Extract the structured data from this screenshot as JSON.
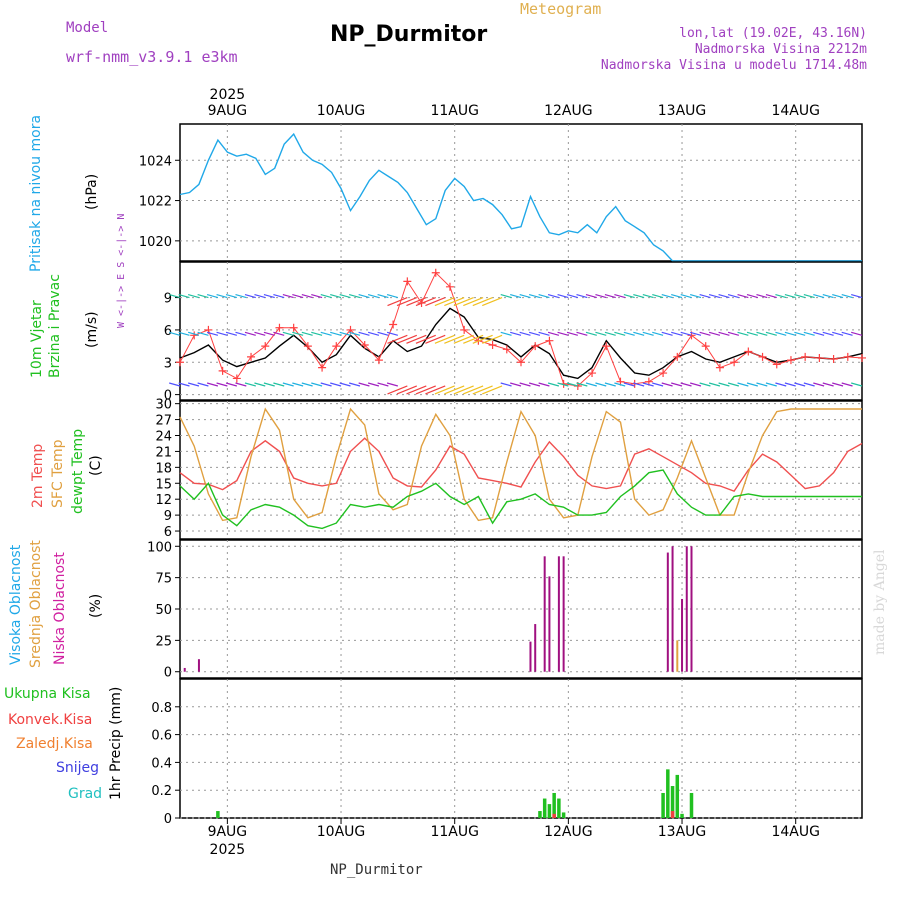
{
  "header": {
    "model_label": "Model",
    "model_name": "wrf-nmm_v3.9.1 e3km",
    "meteogram_label": "Meteogram",
    "station": "NP_Durmitor",
    "lonlat": "lon,lat (19.02E, 43.16N)",
    "altitude": "Nadmorska Visina 2212m",
    "model_altitude": "Nadmorska Visina u modelu 1714.48m",
    "footer_station": "NP_Durmitor",
    "watermark": "made by Angel",
    "colors": {
      "purple": "#a040c0",
      "gold": "#e0b050"
    }
  },
  "time_axis": {
    "year": "2025",
    "days": [
      "9AUG",
      "10AUG",
      "11AUG",
      "12AUG",
      "13AUG",
      "14AUG"
    ],
    "start_hour": 0,
    "end_hour": 144
  },
  "chart_data": [
    {
      "type": "line",
      "id": "pressure",
      "ylabel": "Pritisak na nivou mora",
      "unit": "(hPa)",
      "ylim": [
        1019,
        1025.8
      ],
      "yticks": [
        1020,
        1022,
        1024
      ],
      "grid": true,
      "series": [
        {
          "name": "Pritisak na nivou mora",
          "color": "#20a8e8",
          "x": [
            0,
            2,
            4,
            6,
            8,
            10,
            12,
            14,
            16,
            18,
            20,
            22,
            24,
            26,
            28,
            30,
            32,
            34,
            36,
            38,
            40,
            42,
            44,
            46,
            48,
            50,
            52,
            54,
            56,
            58,
            60,
            62,
            64,
            66,
            68,
            70,
            72,
            74,
            76,
            78,
            80,
            82,
            84,
            86,
            88,
            90,
            92,
            94,
            96,
            98,
            100,
            102,
            104,
            106,
            108,
            110,
            112,
            114,
            116,
            118,
            120,
            122,
            124,
            126,
            128,
            130,
            132,
            134,
            136,
            138,
            140,
            142,
            144
          ],
          "y": [
            1022.3,
            1022.4,
            1022.8,
            1024.0,
            1025.0,
            1024.4,
            1024.2,
            1024.3,
            1024.1,
            1023.3,
            1023.6,
            1024.8,
            1025.3,
            1024.4,
            1024.0,
            1023.8,
            1023.4,
            1022.6,
            1021.5,
            1022.2,
            1023.0,
            1023.5,
            1023.2,
            1022.9,
            1022.4,
            1021.6,
            1020.8,
            1021.1,
            1022.5,
            1023.1,
            1022.7,
            1022.0,
            1022.1,
            1021.8,
            1021.3,
            1020.6,
            1020.7,
            1022.2,
            1021.2,
            1020.4,
            1020.3,
            1020.5,
            1020.4,
            1020.8,
            1020.4,
            1021.2,
            1021.7,
            1021.0,
            1020.7,
            1020.4,
            1019.8,
            1019.5,
            1019.0,
            1019.0,
            1019.0,
            1019.0,
            1019.0,
            1019.0,
            1019.0,
            1019.0,
            1019.0,
            1019.0,
            1019.0,
            1019.0,
            1019.0,
            1019.0,
            1019.0,
            1019.0,
            1019.0,
            1019.0,
            1019.0,
            1019.0,
            1019.0
          ]
        }
      ]
    },
    {
      "type": "line",
      "id": "wind",
      "ylabel": "10m Vjetar Brzina i Pravac",
      "unit": "(m/s)",
      "compass": "W <-|-> E  S <-|-> N",
      "ylim": [
        -0.5,
        12.3
      ],
      "yticks": [
        0,
        3,
        6,
        9
      ],
      "grid": true,
      "series": [
        {
          "name": "speed",
          "color": "#000000",
          "x": [
            0,
            3,
            6,
            9,
            12,
            15,
            18,
            21,
            24,
            27,
            30,
            33,
            36,
            39,
            42,
            45,
            48,
            51,
            54,
            57,
            60,
            63,
            66,
            69,
            72,
            75,
            78,
            81,
            84,
            87,
            90,
            93,
            96,
            99,
            102,
            105,
            108,
            111,
            114,
            117,
            120,
            123,
            126,
            129,
            132,
            135,
            138,
            141,
            144
          ],
          "y": [
            3.4,
            3.9,
            4.6,
            3.2,
            2.6,
            3.0,
            3.4,
            4.5,
            5.5,
            4.4,
            3.0,
            3.7,
            5.5,
            4.3,
            3.5,
            5.0,
            4.0,
            4.5,
            6.5,
            8.0,
            7.2,
            5.3,
            5.1,
            4.6,
            3.5,
            4.6,
            3.8,
            1.8,
            1.5,
            2.5,
            5.0,
            3.4,
            2.0,
            1.8,
            2.5,
            3.5,
            4.0,
            3.3,
            3.0,
            3.5,
            4.0,
            3.5,
            3.0,
            3.2,
            3.5,
            3.4,
            3.3,
            3.5,
            3.8
          ]
        },
        {
          "name": "gust",
          "color": "#ff4040",
          "x": [
            0,
            3,
            6,
            9,
            12,
            15,
            18,
            21,
            24,
            27,
            30,
            33,
            36,
            39,
            42,
            45,
            48,
            51,
            54,
            57,
            60,
            63,
            66,
            69,
            72,
            75,
            78,
            81,
            84,
            87,
            90,
            93,
            96,
            99,
            102,
            105,
            108,
            111,
            114,
            117,
            120,
            123,
            126,
            129,
            132,
            135,
            138,
            141,
            144
          ],
          "y": [
            3.0,
            5.5,
            6.0,
            2.2,
            1.5,
            3.5,
            4.5,
            6.2,
            6.2,
            4.5,
            2.5,
            4.5,
            6.0,
            4.6,
            3.2,
            6.5,
            10.5,
            8.5,
            11.3,
            10.0,
            6.0,
            5.0,
            4.6,
            4.2,
            3.0,
            4.5,
            5.0,
            1.0,
            0.8,
            2.0,
            4.5,
            1.2,
            1.0,
            1.2,
            2.0,
            3.5,
            5.5,
            4.5,
            2.5,
            3.0,
            4.0,
            3.5,
            2.8,
            3.2,
            3.5,
            3.4,
            3.3,
            3.5,
            3.4
          ]
        }
      ]
    },
    {
      "type": "line",
      "id": "temperature",
      "ylabel_lines": [
        "2m Temp",
        "SFC Temp",
        "dewpt Temp"
      ],
      "unit": "(C)",
      "ylim": [
        4.5,
        30.5
      ],
      "yticks": [
        6,
        9,
        12,
        15,
        18,
        21,
        24,
        27,
        30
      ],
      "grid": true,
      "series": [
        {
          "name": "2m Temp",
          "color": "#f05050",
          "x": [
            0,
            3,
            6,
            9,
            12,
            15,
            18,
            21,
            24,
            27,
            30,
            33,
            36,
            39,
            42,
            45,
            48,
            51,
            54,
            57,
            60,
            63,
            66,
            69,
            72,
            75,
            78,
            81,
            84,
            87,
            90,
            93,
            96,
            99,
            102,
            105,
            108,
            111,
            114,
            117,
            120,
            123,
            126,
            129,
            132,
            135,
            138,
            141,
            144
          ],
          "y": [
            17.0,
            15.0,
            14.8,
            13.8,
            15.5,
            21.0,
            23.0,
            21.0,
            16.0,
            15.0,
            14.5,
            15.0,
            21.0,
            23.5,
            21.0,
            16.0,
            14.5,
            14.3,
            17.5,
            22.0,
            20.5,
            16.0,
            15.5,
            15.0,
            14.3,
            19.0,
            22.8,
            20.0,
            16.5,
            14.5,
            14.0,
            14.5,
            20.5,
            21.5,
            20.0,
            18.5,
            17.0,
            15.0,
            14.5,
            13.5,
            17.5,
            20.5,
            19.0,
            16.5,
            14.0,
            14.5,
            17.0,
            21.0,
            22.5
          ]
        },
        {
          "name": "SFC Temp",
          "color": "#e0a040",
          "x": [
            0,
            3,
            6,
            9,
            12,
            15,
            18,
            21,
            24,
            27,
            30,
            33,
            36,
            39,
            42,
            45,
            48,
            51,
            54,
            57,
            60,
            63,
            66,
            69,
            72,
            75,
            78,
            81,
            84,
            87,
            90,
            93,
            96,
            99,
            102,
            105,
            108,
            111,
            114,
            117,
            120,
            123,
            126,
            129,
            132,
            135,
            138,
            141,
            144
          ],
          "y": [
            27.5,
            22.0,
            13.0,
            8.0,
            8.5,
            20.0,
            29.0,
            25.0,
            12.0,
            8.5,
            9.5,
            20.0,
            29.0,
            26.0,
            13.0,
            10.0,
            11.0,
            22.0,
            28.0,
            24.0,
            12.0,
            8.0,
            8.5,
            19.0,
            28.5,
            24.0,
            12.0,
            8.5,
            9.0,
            20.0,
            28.5,
            26.5,
            12.0,
            9.0,
            10.0,
            16.0,
            23.0,
            16.0,
            9.0,
            9.0,
            17.0,
            24.0,
            28.5,
            29.0,
            29.0,
            29.0,
            29.0,
            29.0,
            29.0
          ]
        },
        {
          "name": "dewpt Temp",
          "color": "#20c020",
          "x": [
            0,
            3,
            6,
            9,
            12,
            15,
            18,
            21,
            24,
            27,
            30,
            33,
            36,
            39,
            42,
            45,
            48,
            51,
            54,
            57,
            60,
            63,
            66,
            69,
            72,
            75,
            78,
            81,
            84,
            87,
            90,
            93,
            96,
            99,
            102,
            105,
            108,
            111,
            114,
            117,
            120,
            123,
            126,
            129,
            132,
            135,
            138,
            141,
            144
          ],
          "y": [
            14.5,
            12.0,
            15.0,
            9.0,
            7.0,
            10.0,
            11.0,
            10.5,
            9.0,
            7.0,
            6.5,
            7.5,
            11.0,
            10.5,
            11.0,
            10.5,
            12.5,
            13.5,
            15.0,
            12.5,
            11.0,
            12.5,
            7.5,
            11.5,
            12.0,
            13.0,
            11.0,
            10.5,
            9.0,
            9.0,
            9.5,
            12.5,
            14.5,
            17.0,
            17.5,
            13.0,
            10.5,
            9.0,
            9.0,
            12.5,
            13.0,
            12.5,
            12.5,
            12.5,
            12.5,
            12.5,
            12.5,
            12.5,
            12.5
          ]
        }
      ]
    },
    {
      "type": "bar",
      "id": "cloud",
      "ylabel_lines": [
        "Visoka Oblacnost",
        "Srednja Oblacnost",
        "Niska Oblacnost"
      ],
      "ylabel_colors": [
        "#20a8e8",
        "#e0a040",
        "#d020a0"
      ],
      "unit": "(%)",
      "ylim": [
        -5,
        105
      ],
      "yticks": [
        0,
        25,
        50,
        75,
        100
      ],
      "grid": true,
      "series": [
        {
          "name": "Niska Oblacnost",
          "color": "#a01080",
          "x": [
            1,
            4,
            74,
            75,
            77,
            78,
            80,
            81,
            103,
            104,
            106,
            107,
            108
          ],
          "y": [
            3,
            10,
            24,
            38,
            92,
            76,
            92,
            92,
            95,
            100,
            58,
            100,
            100
          ]
        },
        {
          "name": "Srednja Oblacnost",
          "color": "#e0a040",
          "x": [
            105
          ],
          "y": [
            25
          ]
        }
      ]
    },
    {
      "type": "bar",
      "id": "precip",
      "ylabel": "1hr Precip (mm)",
      "legend": [
        {
          "label": "Ukupna Kisa",
          "color": "#20c020"
        },
        {
          "label": "Konvek.Kisa",
          "color": "#f04040"
        },
        {
          "label": "Zaledj.Kisa",
          "color": "#f08030"
        },
        {
          "label": "Snijeg",
          "color": "#4040e0"
        },
        {
          "label": "Grad",
          "color": "#20c0c0"
        }
      ],
      "ylim": [
        0,
        1.0
      ],
      "yticks": [
        0,
        0.2,
        0.4,
        0.6,
        0.8
      ],
      "grid": true,
      "series": [
        {
          "name": "Ukupna Kisa",
          "color": "#20c020",
          "x": [
            8,
            76,
            77,
            78,
            79,
            80,
            81,
            102,
            103,
            104,
            105,
            106,
            108
          ],
          "y": [
            0.05,
            0.05,
            0.14,
            0.1,
            0.18,
            0.14,
            0.04,
            0.18,
            0.35,
            0.23,
            0.31,
            0.03,
            0.18
          ]
        },
        {
          "name": "Konvek.Kisa",
          "color": "#f04040",
          "x": [
            79,
            104
          ],
          "y": [
            0.03,
            0.05
          ]
        }
      ]
    }
  ]
}
